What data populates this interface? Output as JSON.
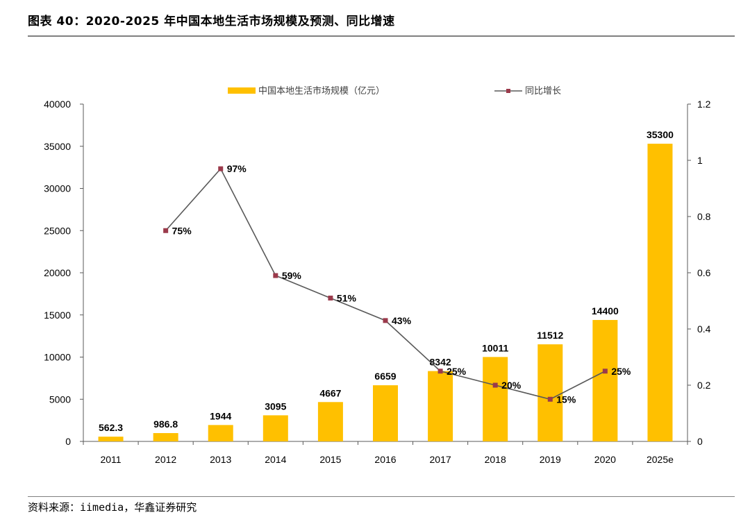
{
  "figure": {
    "title": "图表 40：2020-2025 年中国本地生活市场规模及预测、同比增速",
    "source": "资料来源：iimedia，华鑫证券研究"
  },
  "colors": {
    "bar": "#FFC000",
    "line": "#595959",
    "marker": "#9B3A4B",
    "axis": "#595959"
  },
  "chart_data": {
    "type": "bar",
    "categories": [
      "2011",
      "2012",
      "2013",
      "2014",
      "2015",
      "2016",
      "2017",
      "2018",
      "2019",
      "2020",
      "2025e"
    ],
    "series": [
      {
        "name": "中国本地生活市场规模（亿元）",
        "type": "bar",
        "axis": "left",
        "values": [
          562.3,
          986.8,
          1944,
          3095,
          4667,
          6659,
          8342,
          10011,
          11512,
          14400,
          35300
        ],
        "labels": [
          "562.3",
          "986.8",
          "1944",
          "3095",
          "4667",
          "6659",
          "8342",
          "10011",
          "11512",
          "14400",
          "35300"
        ]
      },
      {
        "name": "同比增长",
        "type": "line",
        "axis": "right",
        "values": [
          null,
          0.75,
          0.97,
          0.59,
          0.51,
          0.43,
          0.25,
          0.2,
          0.15,
          0.25,
          null
        ],
        "labels": [
          "",
          "75%",
          "97%",
          "59%",
          "51%",
          "43%",
          "25%",
          "20%",
          "15%",
          "25%",
          ""
        ]
      }
    ],
    "y_left": {
      "min": 0,
      "max": 40000,
      "ticks": [
        "0",
        "5000",
        "10000",
        "15000",
        "20000",
        "25000",
        "30000",
        "35000",
        "40000"
      ]
    },
    "y_right": {
      "min": 0,
      "max": 1.2,
      "ticks": [
        "0",
        "0.2",
        "0.4",
        "0.6",
        "0.8",
        "1",
        "1.2"
      ]
    },
    "grid": false,
    "legend": "top-center"
  }
}
